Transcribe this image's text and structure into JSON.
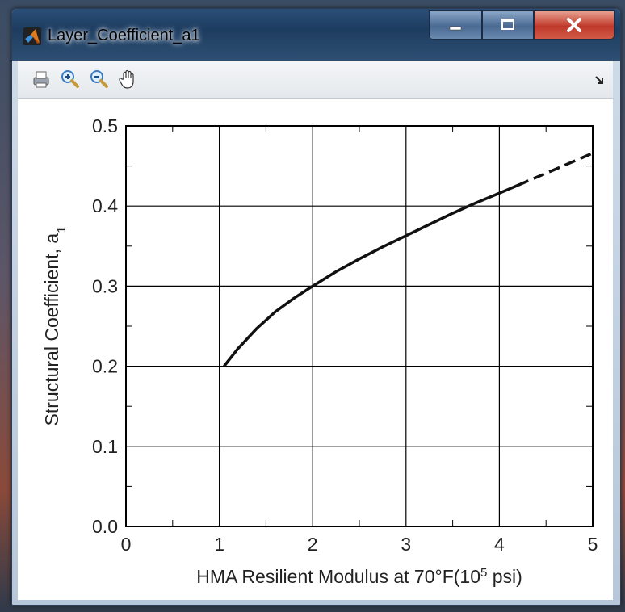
{
  "window": {
    "title": "Layer_Coefficient_a1",
    "controls": {
      "minimize_icon": "minimize-icon",
      "maximize_icon": "maximize-icon",
      "close_icon": "close-icon"
    }
  },
  "toolbar": {
    "items": [
      {
        "icon": "print-icon"
      },
      {
        "icon": "zoom-in-icon"
      },
      {
        "icon": "zoom-out-icon"
      },
      {
        "icon": "pan-hand-icon"
      }
    ],
    "dock_icon": "dock-arrow-icon"
  },
  "chart_data": {
    "type": "line",
    "xlabel": "HMA Resilient Modulus at 70°F(10",
    "xlabel_sup": "5",
    "xlabel_tail": " psi)",
    "ylabel": "Structural Coefficient, a",
    "ylabel_sub": "1",
    "xlim": [
      0,
      5
    ],
    "ylim": [
      0,
      0.5
    ],
    "xticks": [
      "0",
      "1",
      "2",
      "3",
      "4",
      "5"
    ],
    "yticks": [
      "0.0",
      "0.1",
      "0.2",
      "0.3",
      "0.4",
      "0.5"
    ],
    "grid": true,
    "series": [
      {
        "style": "solid",
        "x": [
          1.05,
          1.2,
          1.4,
          1.6,
          1.8,
          2.0,
          2.25,
          2.5,
          2.75,
          3.0,
          3.25,
          3.5,
          3.75,
          4.0,
          4.2
        ],
        "y": [
          0.2,
          0.222,
          0.247,
          0.268,
          0.285,
          0.3,
          0.318,
          0.334,
          0.349,
          0.363,
          0.377,
          0.391,
          0.404,
          0.416,
          0.426
        ]
      },
      {
        "style": "dashed",
        "x": [
          4.2,
          4.4,
          4.6,
          4.8,
          5.0
        ],
        "y": [
          0.426,
          0.436,
          0.446,
          0.456,
          0.466
        ]
      }
    ]
  }
}
